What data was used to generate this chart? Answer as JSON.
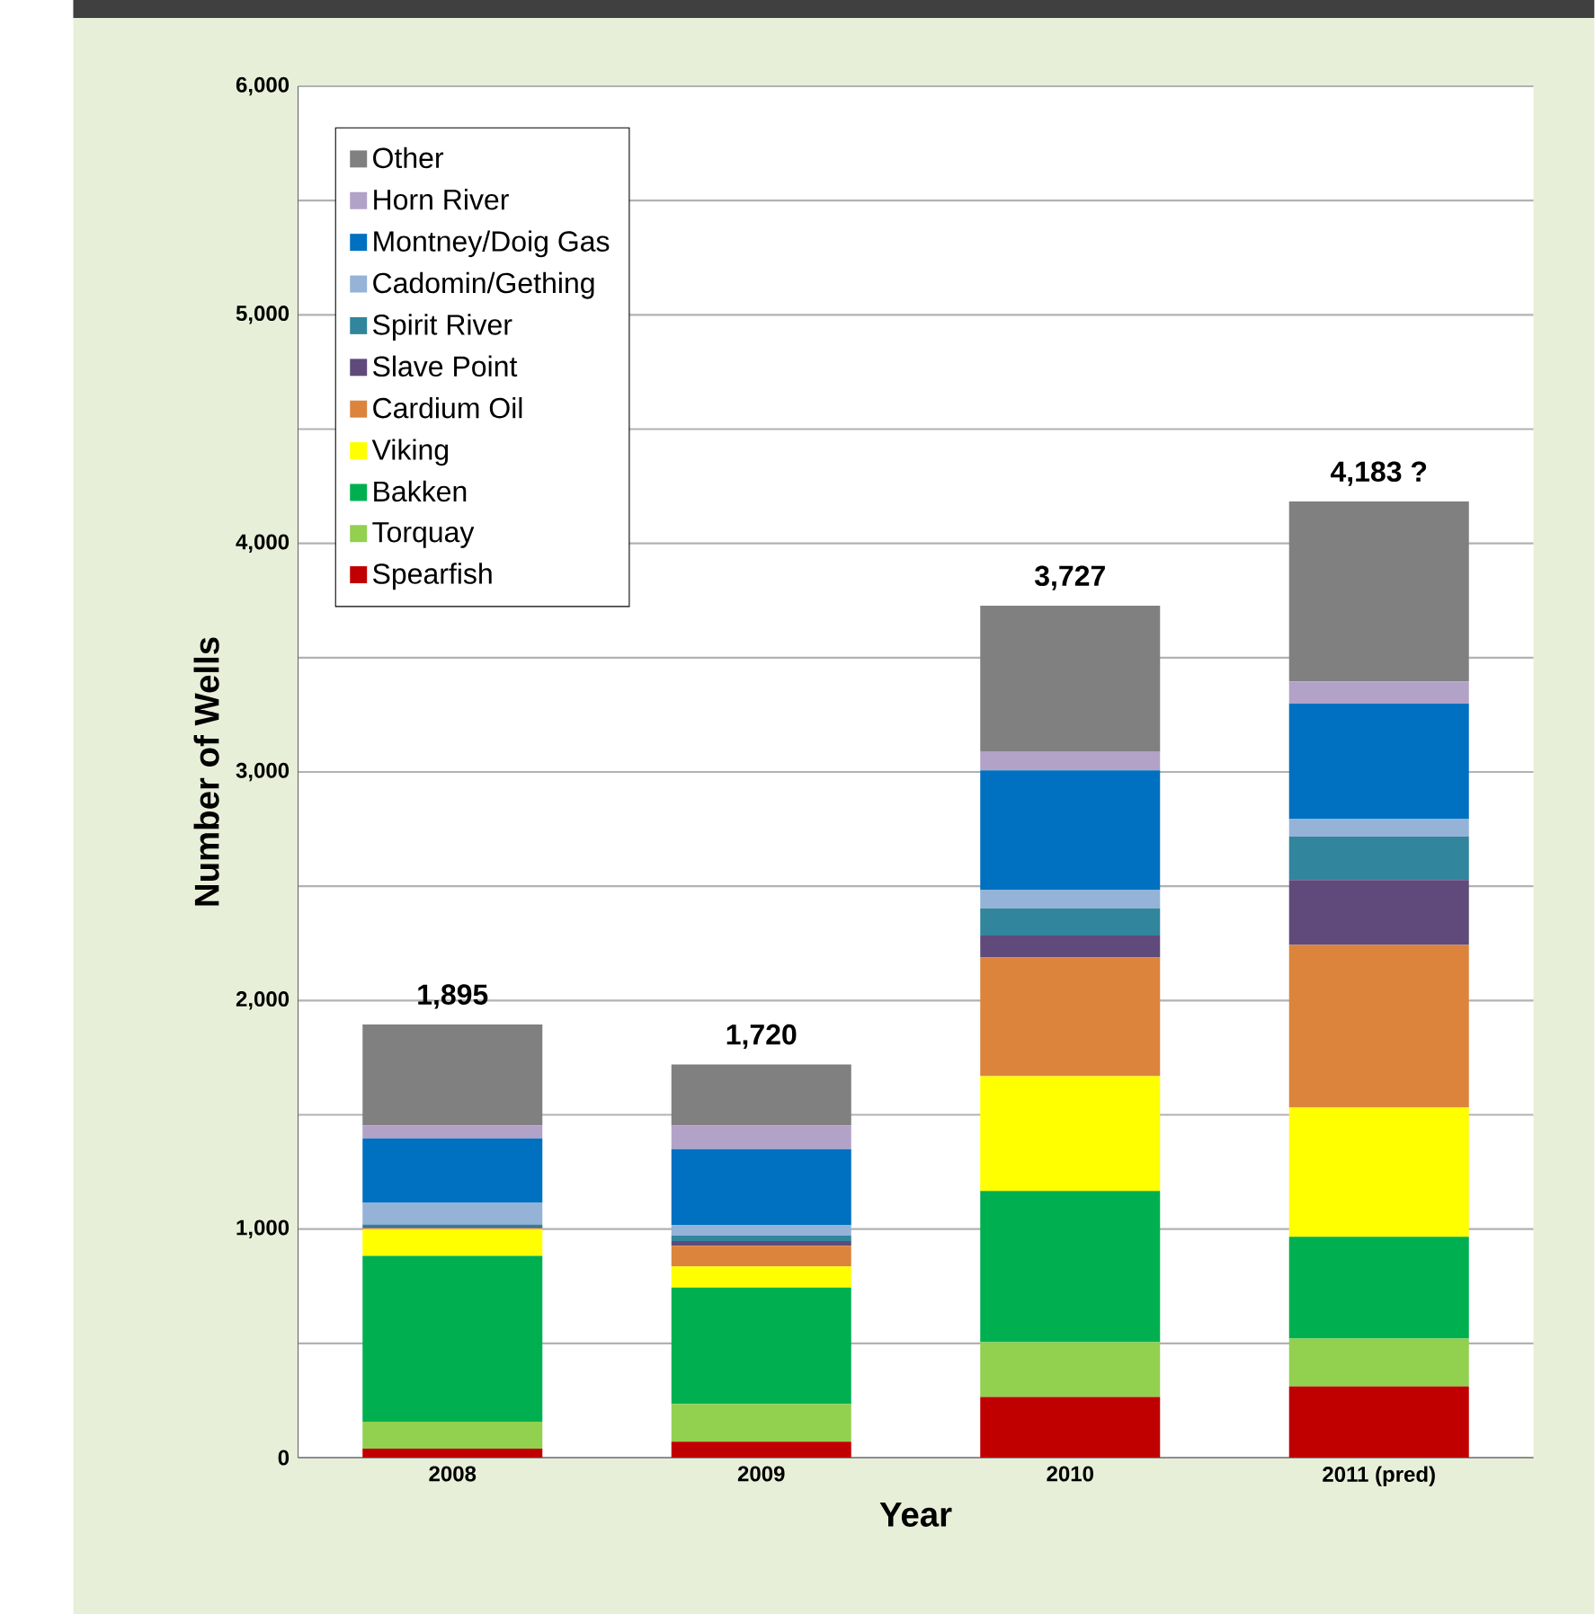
{
  "chart_data": {
    "type": "bar",
    "stacked": true,
    "xlabel": "Year",
    "ylabel": "Number of Wells",
    "categories": [
      "2008",
      "2009",
      "2010",
      "2011 (pred)"
    ],
    "series": [
      {
        "name": "Spearfish",
        "color": "#c00000",
        "values": [
          39,
          70,
          265,
          312
        ]
      },
      {
        "name": "Torquay",
        "color": "#92d050",
        "values": [
          118,
          165,
          240,
          209
        ]
      },
      {
        "name": "Bakken",
        "color": "#00b050",
        "values": [
          726,
          509,
          662,
          445
        ]
      },
      {
        "name": "Viking",
        "color": "#ffff00",
        "values": [
          117,
          92,
          502,
          565
        ]
      },
      {
        "name": "Cardium Oil",
        "color": "#dc843c",
        "values": [
          5,
          91,
          519,
          712
        ]
      },
      {
        "name": "Slave Point",
        "color": "#604a7b",
        "values": [
          5,
          21,
          96,
          284
        ]
      },
      {
        "name": "Spirit River",
        "color": "#31859c",
        "values": [
          10,
          23,
          119,
          190
        ]
      },
      {
        "name": "Cadomin/Gething",
        "color": "#95b3d7",
        "values": [
          95,
          47,
          80,
          77
        ]
      },
      {
        "name": "Montney/Doig Gas",
        "color": "#0070c0",
        "values": [
          282,
          332,
          524,
          505
        ]
      },
      {
        "name": "Horn River",
        "color": "#b2a2c7",
        "values": [
          57,
          104,
          83,
          97
        ]
      },
      {
        "name": "Other",
        "color": "#808080",
        "values": [
          441,
          266,
          637,
          787
        ]
      }
    ],
    "totals": [
      "1,895",
      "1,720",
      "3,727",
      "4,183 ?"
    ],
    "ylim": [
      0,
      6000
    ],
    "yticks": [
      {
        "value": 0,
        "label": "0"
      },
      {
        "value": 500,
        "label": null
      },
      {
        "value": 1000,
        "label": "1,000"
      },
      {
        "value": 1500,
        "label": null
      },
      {
        "value": 2000,
        "label": "2,000"
      },
      {
        "value": 2500,
        "label": null
      },
      {
        "value": 3000,
        "label": "3,000"
      },
      {
        "value": 3500,
        "label": null
      },
      {
        "value": 4000,
        "label": "4,000"
      },
      {
        "value": 4500,
        "label": null
      },
      {
        "value": 5000,
        "label": "5,000"
      },
      {
        "value": 5500,
        "label": null
      },
      {
        "value": 6000,
        "label": "6,000"
      }
    ],
    "grid": "y",
    "legend": "top left"
  }
}
